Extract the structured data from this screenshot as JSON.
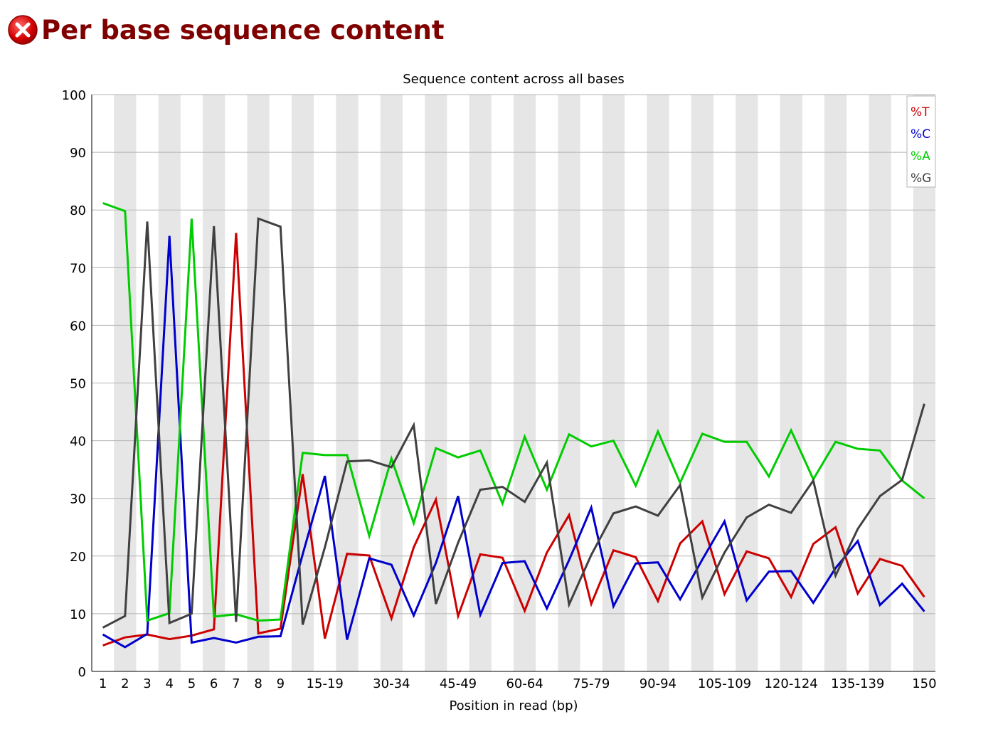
{
  "module": {
    "title": "Per base sequence content",
    "status": "fail",
    "status_icon": "fail-icon",
    "status_color": "#cc0000"
  },
  "chart_data": {
    "type": "line",
    "title": "Sequence content across all bases",
    "xlabel": "Position in read (bp)",
    "ylabel": "",
    "ylim": [
      0,
      100
    ],
    "yticks": [
      0,
      10,
      20,
      30,
      40,
      50,
      60,
      70,
      80,
      90,
      100
    ],
    "grid": true,
    "legend_position": "top-right",
    "categories": [
      "1",
      "2",
      "3",
      "4",
      "5",
      "6",
      "7",
      "8",
      "9",
      "10-14",
      "15-19",
      "20-24",
      "25-29",
      "30-34",
      "35-39",
      "40-44",
      "45-49",
      "50-54",
      "55-59",
      "60-64",
      "65-69",
      "70-74",
      "75-79",
      "80-84",
      "85-89",
      "90-94",
      "95-99",
      "100-104",
      "105-109",
      "110-114",
      "115-119",
      "120-124",
      "125-129",
      "130-134",
      "135-139",
      "140-144",
      "145-149",
      "150"
    ],
    "x_tick_labels": [
      "1",
      "2",
      "3",
      "4",
      "5",
      "6",
      "7",
      "8",
      "9",
      "",
      "15-19",
      "",
      "",
      "30-34",
      "",
      "",
      "45-49",
      "",
      "",
      "60-64",
      "",
      "",
      "75-79",
      "",
      "",
      "90-94",
      "",
      "",
      "105-109",
      "",
      "",
      "120-124",
      "",
      "",
      "135-139",
      "",
      "",
      "150"
    ],
    "series": [
      {
        "name": "%T",
        "color": "#cc0000",
        "values": [
          4.5,
          5.9,
          6.4,
          5.6,
          6.2,
          7.3,
          76.0,
          6.6,
          7.4,
          34.2,
          5.7,
          20.4,
          20.1,
          9.2,
          21.5,
          29.8,
          9.6,
          20.3,
          19.7,
          10.5,
          20.6,
          27.1,
          11.7,
          21.0,
          19.8,
          12.2,
          22.2,
          26.0,
          13.4,
          20.8,
          19.6,
          12.9,
          22.1,
          25.0,
          13.5,
          19.5,
          18.3,
          12.9
        ]
      },
      {
        "name": "%C",
        "color": "#0000cc",
        "values": [
          6.4,
          4.2,
          6.5,
          75.5,
          5.0,
          5.8,
          5.0,
          6.0,
          6.1,
          20.3,
          33.9,
          5.5,
          19.6,
          18.5,
          9.7,
          18.8,
          30.4,
          9.8,
          18.8,
          19.1,
          10.9,
          19.3,
          28.4,
          11.3,
          18.7,
          18.9,
          12.5,
          19.4,
          26.0,
          12.3,
          17.3,
          17.4,
          11.9,
          17.9,
          22.6,
          11.5,
          15.2,
          10.4
        ]
      },
      {
        "name": "%A",
        "color": "#00cc00",
        "values": [
          81.2,
          79.8,
          8.8,
          10.1,
          78.5,
          9.5,
          9.9,
          8.8,
          9.0,
          37.9,
          37.5,
          37.5,
          23.5,
          36.9,
          25.7,
          38.7,
          37.1,
          38.3,
          29.1,
          40.7,
          31.5,
          41.1,
          39.0,
          40.0,
          32.2,
          41.6,
          32.7,
          41.2,
          39.8,
          39.8,
          33.8,
          41.8,
          33.3,
          39.8,
          38.6,
          38.3,
          33.1,
          30.0
        ]
      },
      {
        "name": "%G",
        "color": "#404040",
        "values": [
          7.6,
          9.6,
          78.0,
          8.4,
          10.0,
          77.2,
          8.6,
          78.5,
          77.1,
          8.1,
          21.5,
          36.4,
          36.6,
          35.4,
          42.7,
          11.7,
          22.3,
          31.5,
          32.0,
          29.4,
          36.2,
          11.6,
          20.2,
          27.4,
          28.6,
          27.0,
          32.3,
          12.8,
          20.6,
          26.7,
          28.9,
          27.5,
          33.1,
          16.6,
          24.7,
          30.4,
          33.2,
          46.4
        ]
      }
    ]
  }
}
